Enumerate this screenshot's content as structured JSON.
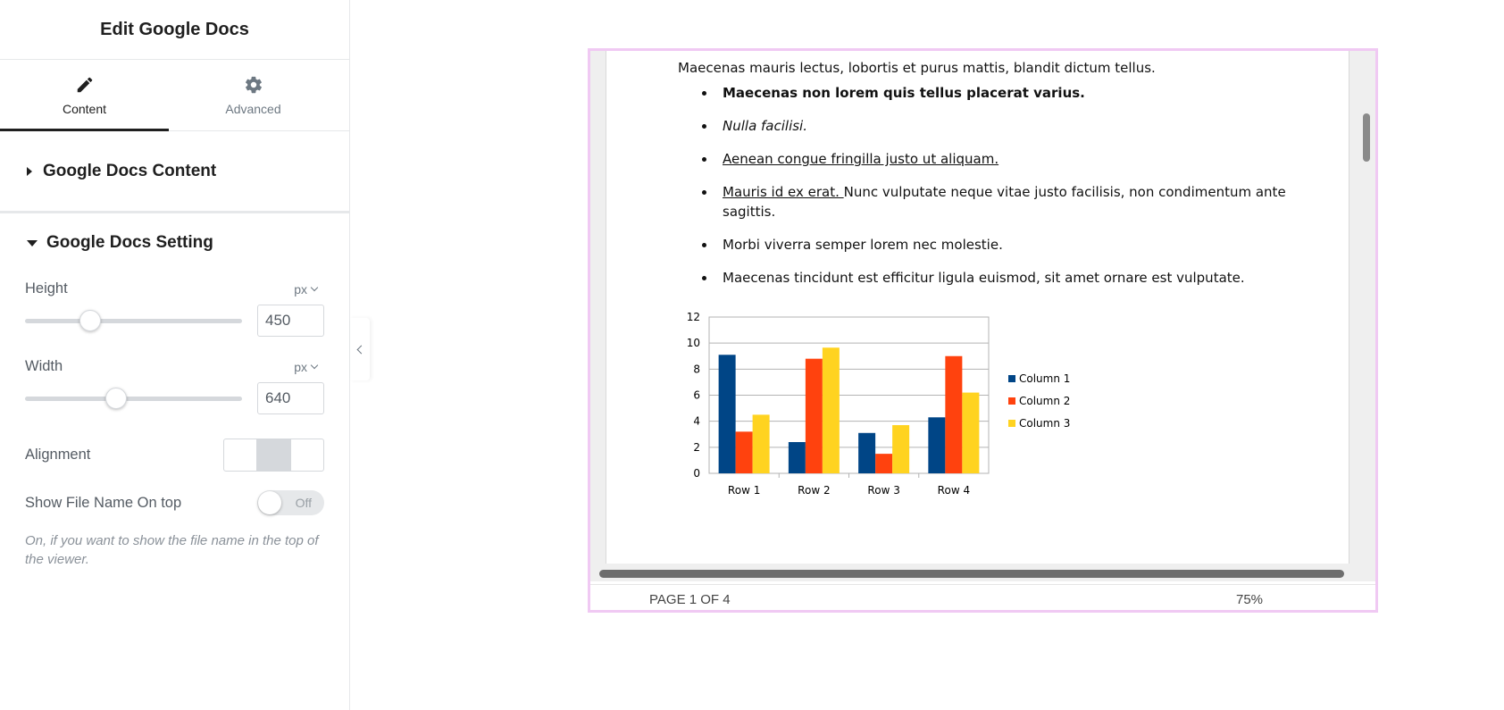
{
  "panel": {
    "title": "Edit Google Docs",
    "tabs": [
      {
        "label": "Content",
        "icon": "pencil-icon",
        "active": true
      },
      {
        "label": "Advanced",
        "icon": "gear-icon",
        "active": false
      }
    ],
    "sections": {
      "content_title": "Google Docs Content",
      "setting_title": "Google Docs Setting"
    },
    "height": {
      "label": "Height",
      "unit": "px",
      "value": "450",
      "slider_fraction": 0.3
    },
    "width": {
      "label": "Width",
      "unit": "px",
      "value": "640",
      "slider_fraction": 0.42
    },
    "alignment": {
      "label": "Alignment",
      "selected": "center"
    },
    "show_file_name": {
      "label": "Show File Name On top",
      "state": "Off",
      "help": "On, if you want to show the file name in the top of the viewer."
    }
  },
  "document": {
    "paragraph": "Maecenas mauris lectus, lobortis et purus mattis, blandit dictum tellus.",
    "bullets": {
      "b1": "Maecenas non lorem quis tellus placerat varius.",
      "b2": "Nulla facilisi.",
      "b3": "Aenean congue fringilla justo ut aliquam.",
      "b4_link": "Mauris id ex erat. ",
      "b4_rest": "Nunc vulputate neque vitae justo facilisis, non condimentum ante sagittis.",
      "b5": "Morbi viverra semper lorem nec molestie.",
      "b6": "Maecenas tincidunt est efficitur ligula euismod, sit amet ornare est vulputate."
    }
  },
  "chart_data": {
    "type": "bar",
    "categories": [
      "Row 1",
      "Row 2",
      "Row 3",
      "Row 4"
    ],
    "series": [
      {
        "name": "Column 1",
        "color": "#004586",
        "values": [
          9.1,
          2.4,
          3.1,
          4.3
        ]
      },
      {
        "name": "Column 2",
        "color": "#ff420e",
        "values": [
          3.2,
          8.8,
          1.5,
          9.0
        ]
      },
      {
        "name": "Column 3",
        "color": "#ffd320",
        "values": [
          4.5,
          9.65,
          3.7,
          6.2
        ]
      }
    ],
    "ylim": [
      0,
      12
    ],
    "yticks": [
      "0",
      "2",
      "4",
      "6",
      "8",
      "10",
      "12"
    ],
    "legend": "right",
    "grid": true
  },
  "status": {
    "page": "PAGE 1 OF 4",
    "zoom": "75%"
  }
}
